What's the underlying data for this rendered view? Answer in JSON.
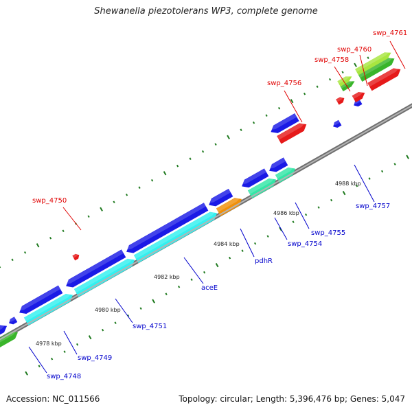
{
  "title": "Shewanella piezotolerans WP3, complete genome",
  "footer": {
    "accession": "Accession: NC_011566",
    "summary": "Topology: circular; Length: 5,396,476 bp; Genes: 5,047"
  },
  "colors": {
    "backbone": "#8a8a8a",
    "tick_dots": "#1f7a1f",
    "forward_label": "#e00000",
    "reverse_label": "#0000cc",
    "blue": "#1a1ae6",
    "red": "#e61a1a",
    "cyan": "#33f0f0",
    "mint": "#33e6a6",
    "orange": "#f0900a",
    "green": "#39b52a",
    "lightgreen": "#a8e640"
  },
  "scale_labels": [
    "4978 kbp",
    "4980 kbp",
    "4982 kbp",
    "4984 kbp",
    "4986 kbp",
    "4988 kbp"
  ],
  "labels": [
    {
      "text": "swp_4761",
      "strand": "forward"
    },
    {
      "text": "swp_4760",
      "strand": "forward"
    },
    {
      "text": "swp_4758",
      "strand": "forward"
    },
    {
      "text": "swp_4756",
      "strand": "forward"
    },
    {
      "text": "swp_4750",
      "strand": "forward"
    },
    {
      "text": "swp_4757",
      "strand": "reverse"
    },
    {
      "text": "swp_4755",
      "strand": "reverse"
    },
    {
      "text": "swp_4754",
      "strand": "reverse"
    },
    {
      "text": "pdhR",
      "strand": "reverse"
    },
    {
      "text": "aceE",
      "strand": "reverse"
    },
    {
      "text": "swp_4751",
      "strand": "reverse"
    },
    {
      "text": "swp_4749",
      "strand": "reverse"
    },
    {
      "text": "swp_4748",
      "strand": "reverse"
    }
  ]
}
